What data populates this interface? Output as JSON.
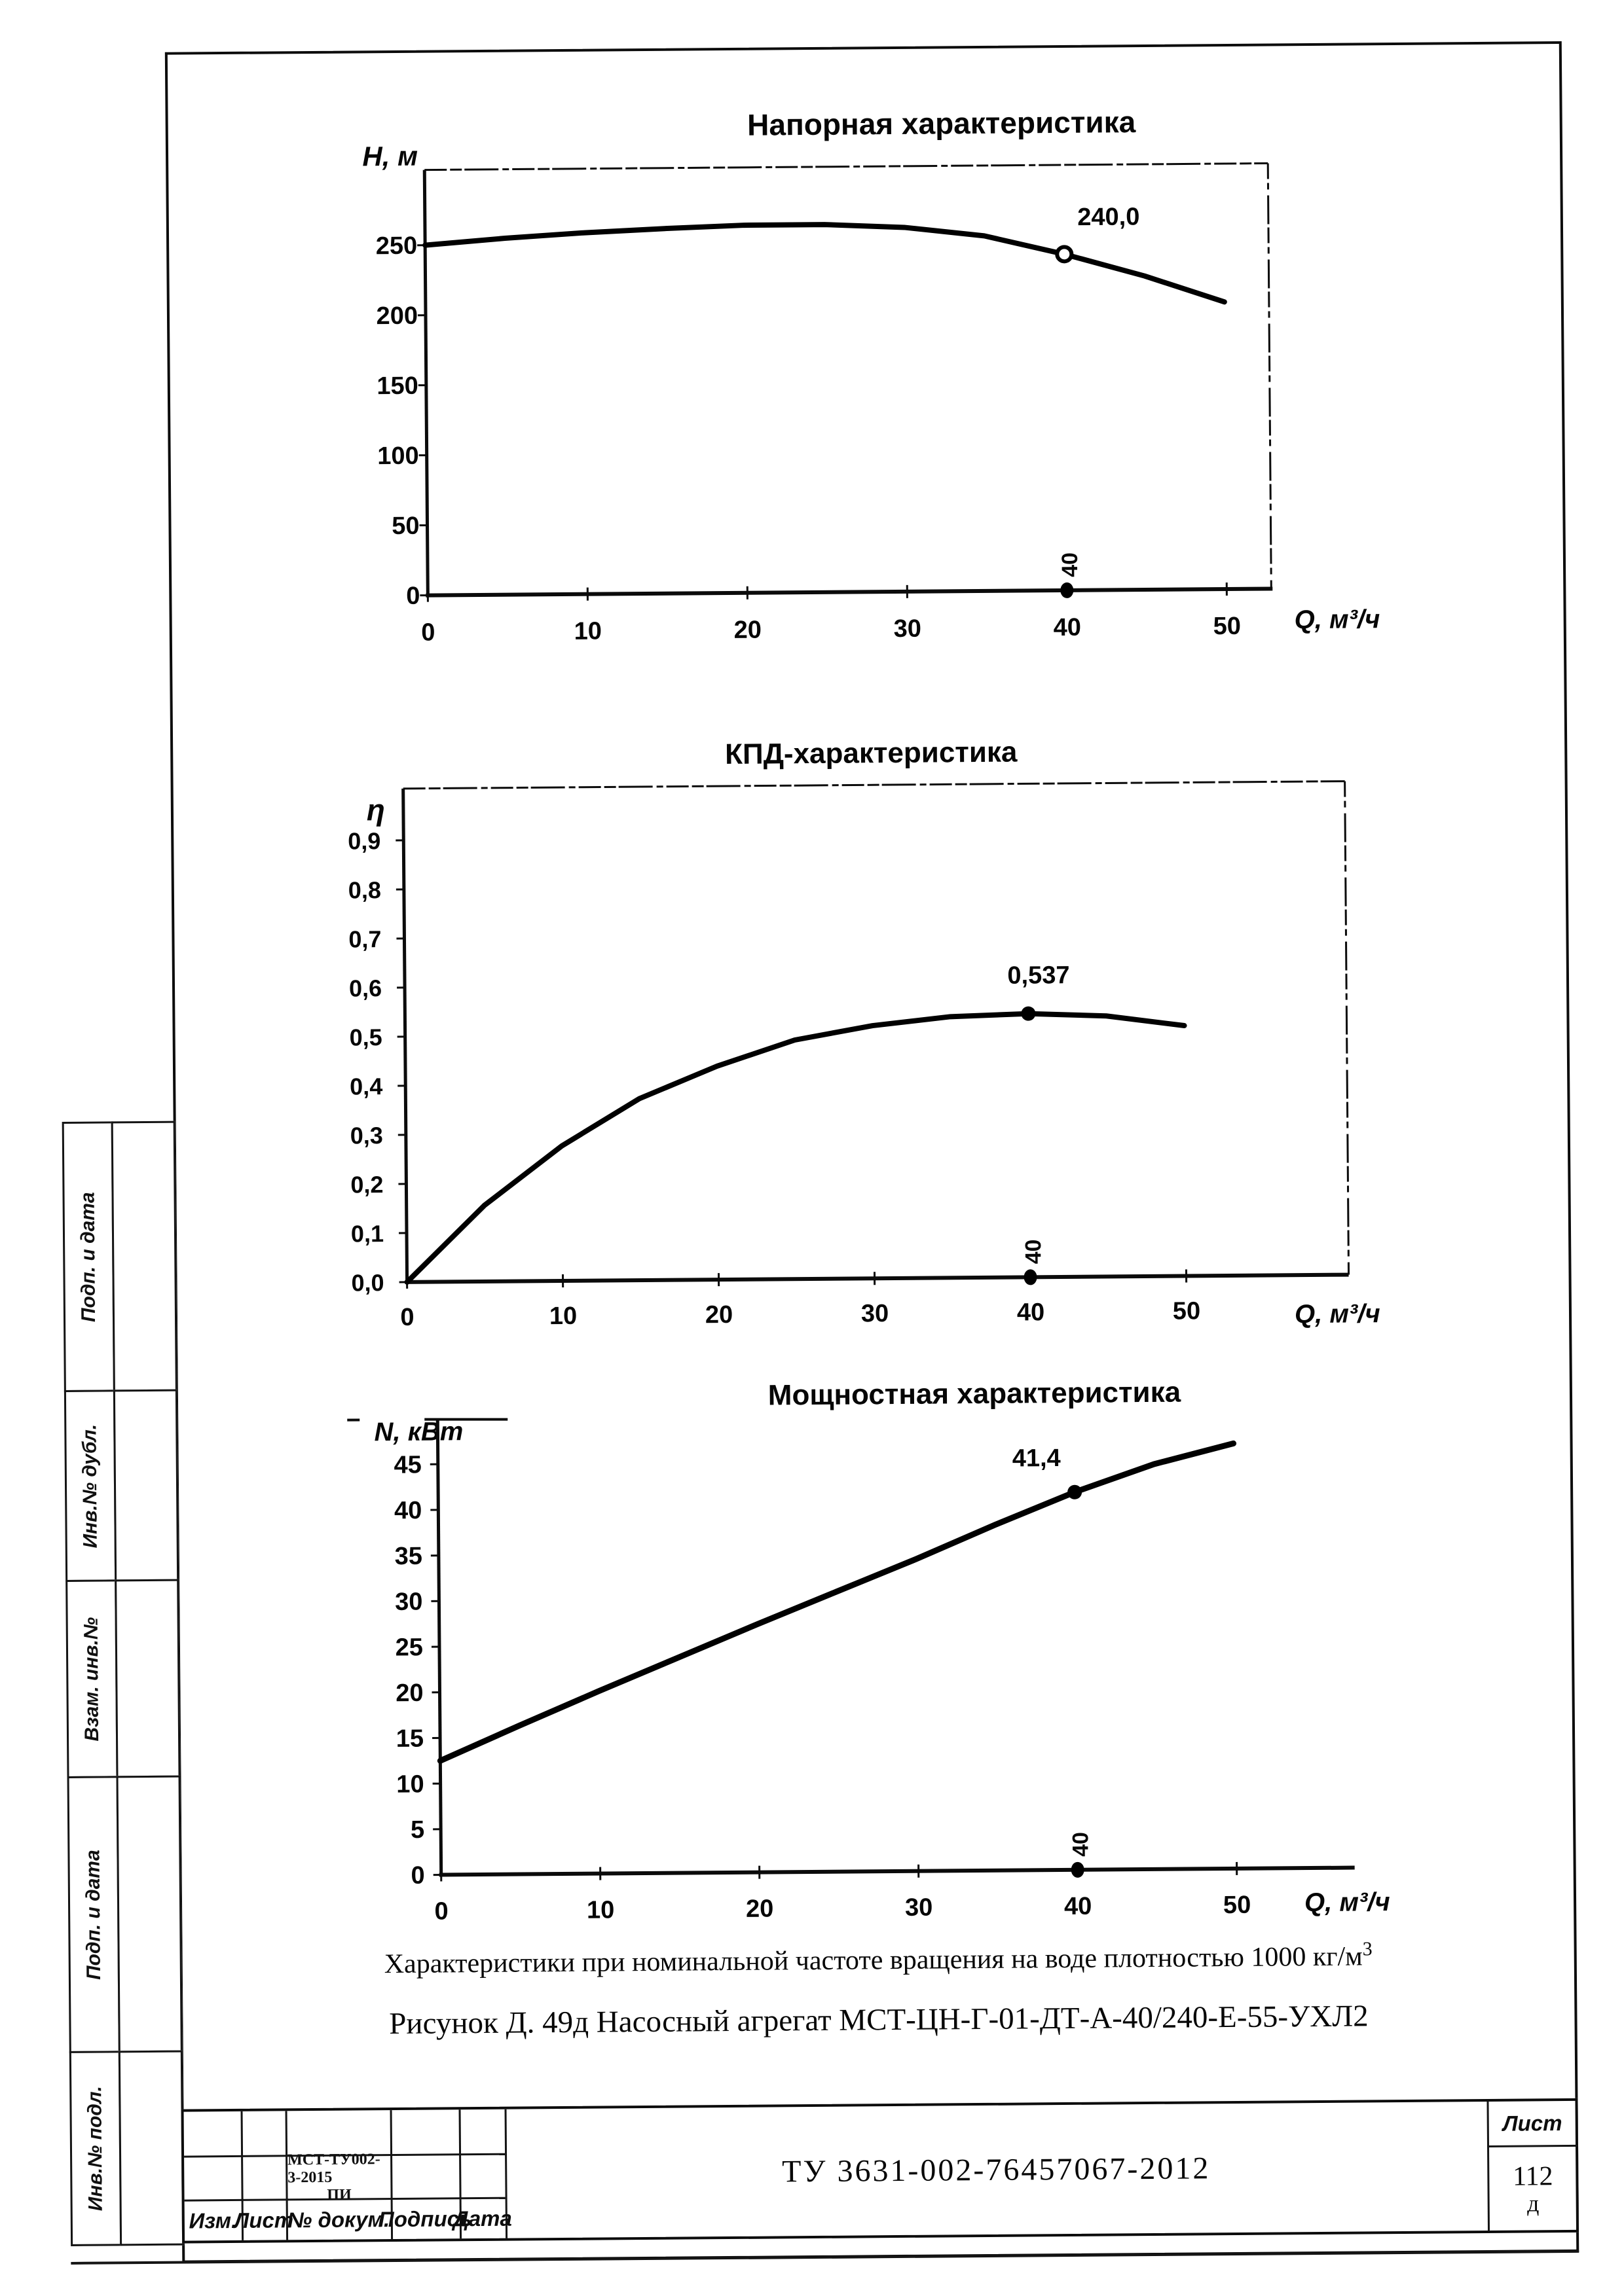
{
  "page": {
    "caption_line1": "Характеристики при номинальной частоте вращения на воде плотностью 1000 кг/м",
    "caption_line1_sup": "3",
    "caption_line2": "Рисунок Д. 49д Насосный агрегат МСТ-ЦН-Г-01-ДТ-А-40/240-Е-55-УХЛ2"
  },
  "margin": {
    "labels": [
      "Подп. и дата",
      "Инв.№ дубл.",
      "Взам. инв.№",
      "Подп. и дата",
      "Инв.№ подл."
    ]
  },
  "stamp": {
    "columns": [
      "Изм.",
      "Лист",
      "№ докум.",
      "Подпись",
      "Дата"
    ],
    "doc_number_small": "МСТ-ТУ002-3-2015",
    "doc_number_small2": "ПИ",
    "designation": "ТУ 3631-002-76457067-2012",
    "sheet_label": "Лист",
    "sheet_number": "112",
    "sheet_suffix": "д"
  },
  "chart_data": [
    {
      "id": "head",
      "type": "line",
      "title": "Напорная характеристика",
      "xlabel": "Q, м³/ч",
      "ylabel": "H, м",
      "x": [
        0,
        5,
        10,
        15,
        20,
        25,
        30,
        35,
        40,
        45,
        50
      ],
      "values": [
        250,
        254.5,
        258,
        260.5,
        262.5,
        262.5,
        260,
        253.5,
        240,
        224,
        205
      ],
      "xticks": [
        0,
        10,
        20,
        30,
        40,
        50
      ],
      "xtick_labels": [
        "0",
        "10",
        "20",
        "30",
        "40",
        "50"
      ],
      "yticks": [
        0,
        50,
        100,
        150,
        200,
        250
      ],
      "ytick_labels": [
        "0",
        "50",
        "100",
        "150",
        "200",
        "250"
      ],
      "xlim": [
        0,
        53
      ],
      "ylim": [
        0,
        304
      ],
      "grid": false,
      "legend": null,
      "point": {
        "x": 40,
        "y": 240,
        "label": "240,0"
      },
      "axis_point": {
        "x": 40,
        "label": "40"
      }
    },
    {
      "id": "eff",
      "type": "line",
      "title": "КПД-характеристика",
      "xlabel": "Q, м³/ч",
      "ylabel": "η",
      "x": [
        0,
        5,
        10,
        15,
        20,
        25,
        30,
        35,
        40,
        45,
        50
      ],
      "values": [
        0,
        0.155,
        0.275,
        0.37,
        0.435,
        0.487,
        0.515,
        0.532,
        0.537,
        0.531,
        0.51
      ],
      "xticks": [
        0,
        10,
        20,
        30,
        40,
        50
      ],
      "xtick_labels": [
        "0",
        "10",
        "20",
        "30",
        "40",
        "50"
      ],
      "yticks": [
        0,
        0.1,
        0.2,
        0.3,
        0.4,
        0.5,
        0.6,
        0.7,
        0.8,
        0.9
      ],
      "ytick_labels": [
        "0,0",
        "0,1",
        "0,2",
        "0,3",
        "0,4",
        "0,5",
        "0,6",
        "0,7",
        "0,8",
        "0,9"
      ],
      "xlim": [
        0,
        53
      ],
      "ylim": [
        0,
        1.0
      ],
      "grid": false,
      "legend": null,
      "point": {
        "x": 40,
        "y": 0.537,
        "label": "0,537"
      },
      "axis_point": {
        "x": 40,
        "label": "40"
      }
    },
    {
      "id": "pow",
      "type": "line",
      "title": "Мощностная характеристика",
      "xlabel": "Q, м³/ч",
      "ylabel": "N, кВт",
      "x": [
        0,
        5,
        10,
        15,
        20,
        25,
        30,
        35,
        40,
        45,
        50
      ],
      "values": [
        12.5,
        16.3,
        20,
        23.6,
        27.2,
        30.7,
        34.2,
        37.9,
        41.4,
        44.4,
        46.6
      ],
      "xticks": [
        0,
        10,
        20,
        30,
        40,
        50
      ],
      "xtick_labels": [
        "0",
        "10",
        "20",
        "30",
        "40",
        "50"
      ],
      "yticks": [
        0,
        5,
        10,
        15,
        20,
        25,
        30,
        35,
        40,
        45
      ],
      "ytick_labels": [
        "0",
        "5",
        "10",
        "15",
        "20",
        "25",
        "30",
        "35",
        "40",
        "45"
      ],
      "xlim": [
        0,
        53
      ],
      "ylim": [
        0,
        50
      ],
      "grid": false,
      "legend": null,
      "point": {
        "x": 40,
        "y": 41.4,
        "label": "41,4"
      },
      "axis_point": {
        "x": 40,
        "label": "40"
      }
    }
  ]
}
